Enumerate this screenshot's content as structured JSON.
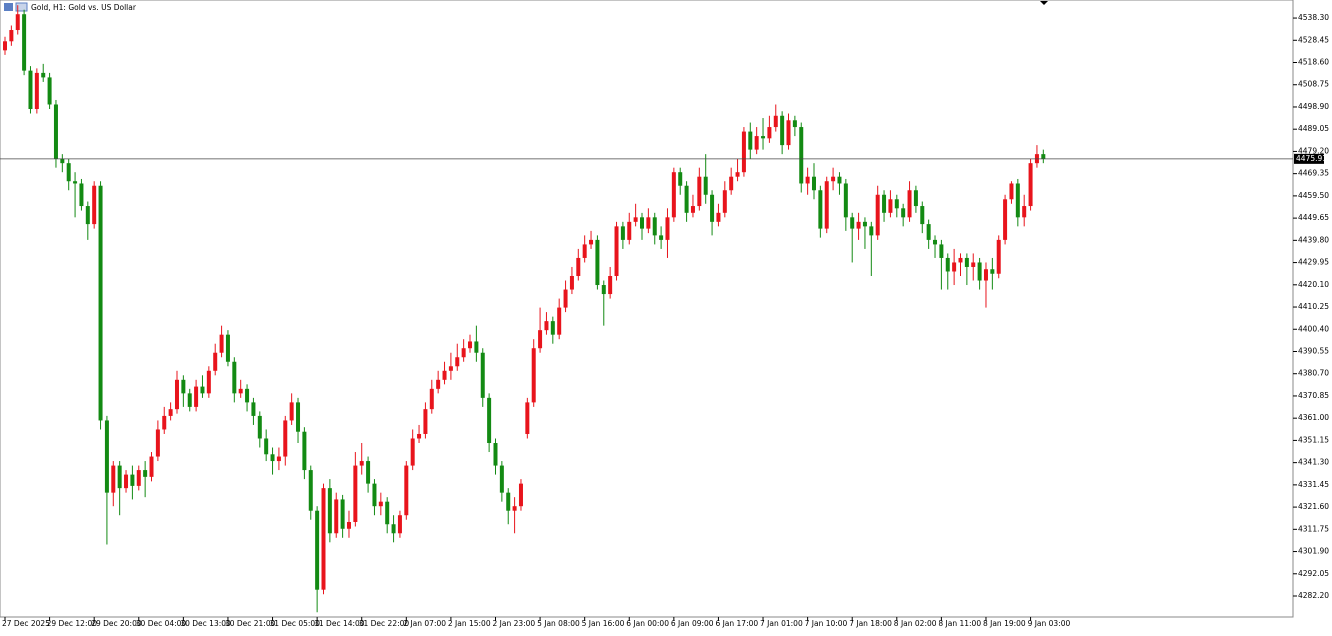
{
  "chart_data": {
    "type": "candlestick",
    "title": "Gold, H1:  Gold vs. US Dollar",
    "up_color": "#e8141c",
    "down_color": "#138a13",
    "price_line": {
      "value": 4475.91,
      "label": "4475.91"
    },
    "ylim": [
      4272.9,
      4546.3
    ],
    "yticks": [
      {
        "value": 4538.3,
        "label": "4538.30"
      },
      {
        "value": 4528.45,
        "label": "4528.45"
      },
      {
        "value": 4518.6,
        "label": "4518.60"
      },
      4508.75,
      {
        "value": 4498.9,
        "label": "4498.90"
      },
      4489.05,
      {
        "value": 4479.2,
        "label": "4479.20"
      },
      4469.35,
      {
        "value": 4459.5,
        "label": "4459.50"
      },
      4449.65,
      {
        "value": 4439.8,
        "label": "4439.80"
      },
      4429.95,
      {
        "value": 4420.1,
        "label": "4420.10"
      },
      4410.25,
      {
        "value": 4400.4,
        "label": "4400.40"
      },
      4390.55,
      {
        "value": 4380.7,
        "label": "4380.70"
      },
      4370.85,
      {
        "value": 4361,
        "label": "4361.00"
      },
      4351.15,
      {
        "value": 4341.3,
        "label": "4341.30"
      },
      4331.45,
      {
        "value": 4321.6,
        "label": "4321.60"
      },
      4311.75,
      {
        "value": 4301.9,
        "label": "4301.90"
      },
      4292.05,
      {
        "value": 4282.2,
        "label": "4282.20"
      }
    ],
    "categories": [
      "27 Dec 2025",
      null,
      null,
      null,
      null,
      null,
      null,
      "29 Dec 12:00",
      null,
      null,
      null,
      null,
      null,
      null,
      "29 Dec 20:00",
      null,
      null,
      null,
      null,
      null,
      null,
      "30 Dec 04:00",
      null,
      null,
      null,
      null,
      null,
      null,
      "30 Dec 13:00",
      null,
      null,
      null,
      null,
      null,
      null,
      "30 Dec 21:00",
      null,
      null,
      null,
      null,
      null,
      null,
      "31 Dec 05:00",
      null,
      null,
      null,
      null,
      null,
      null,
      "31 Dec 14:00",
      null,
      null,
      null,
      null,
      null,
      null,
      "31 Dec 22:00",
      null,
      null,
      null,
      null,
      null,
      null,
      "2 Jan 07:00",
      null,
      null,
      null,
      null,
      null,
      null,
      "2 Jan 15:00",
      null,
      null,
      null,
      null,
      null,
      null,
      "2 Jan 23:00",
      null,
      null,
      null,
      null,
      null,
      null,
      "5 Jan 08:00",
      null,
      null,
      null,
      null,
      null,
      null,
      "5 Jan 16:00",
      null,
      null,
      null,
      null,
      null,
      null,
      "6 Jan 00:00",
      null,
      null,
      null,
      null,
      null,
      null,
      "6 Jan 09:00",
      null,
      null,
      null,
      null,
      null,
      null,
      "6 Jan 17:00",
      null,
      null,
      null,
      null,
      null,
      null,
      "7 Jan 01:00",
      null,
      null,
      null,
      null,
      null,
      null,
      "7 Jan 10:00",
      null,
      null,
      null,
      null,
      null,
      null,
      "7 Jan 18:00",
      null,
      null,
      null,
      null,
      null,
      null,
      "8 Jan 02:00",
      null,
      null,
      null,
      null,
      null,
      null,
      "8 Jan 11:00",
      null,
      null,
      null,
      null,
      null,
      null,
      "8 Jan 19:00",
      null,
      null,
      null,
      null,
      null,
      null,
      "9 Jan 03:00",
      null,
      null
    ],
    "open": [
      4524,
      4528,
      4533,
      4540,
      4515,
      4498,
      4514,
      4512,
      4500,
      4476,
      4474,
      4466,
      4465,
      4455,
      4447,
      4464,
      4360,
      4328,
      4340,
      4330,
      4336,
      4331,
      4338,
      4335,
      4344,
      4356,
      4362,
      4365,
      4378,
      4372,
      4366,
      4375,
      4372,
      4382,
      4390,
      4398,
      4386,
      4372,
      4374,
      4368,
      4362,
      4352,
      4345,
      4342,
      4344,
      4360,
      4368,
      4355,
      4338,
      4320,
      4285,
      4330,
      4310,
      4325,
      4312,
      4315,
      4340,
      4342,
      4332,
      4322,
      4324,
      4314,
      4310,
      4318,
      4340,
      4352,
      4354,
      4365,
      4374,
      4378,
      4382,
      4384,
      4388,
      4392,
      4395,
      4390,
      4370,
      4350,
      4340,
      4328,
      4320,
      4322,
      4354,
      4368,
      4392,
      4400,
      4404,
      4398,
      4410,
      4418,
      4424,
      4432,
      4438,
      4440,
      4420,
      4416,
      4424,
      4446,
      4440,
      4448,
      4450,
      4445,
      4450,
      4442,
      4440,
      4450,
      4470,
      4464,
      4452,
      4455,
      4468,
      4460,
      4448,
      4452,
      4462,
      4468,
      4470,
      4488,
      4480,
      4486,
      4485,
      4490,
      4495,
      4482,
      4493,
      4490,
      4465,
      4468,
      4462,
      4445,
      4466,
      4468,
      4465,
      4450,
      4445,
      4448,
      4446,
      4442,
      4460,
      4452,
      4458,
      4454,
      4450,
      4462,
      4455,
      4447,
      4440,
      4438,
      4432,
      4426,
      4430,
      4432,
      4428,
      4430,
      4422,
      4427,
      4425,
      4440,
      4458,
      4465,
      4450,
      4455,
      4474,
      4478
    ],
    "high": [
      4530,
      4535,
      4544,
      4542,
      4517,
      4516,
      4518,
      4514,
      4502,
      4478,
      4476,
      4470,
      4467,
      4457,
      4466,
      4466,
      4362,
      4342,
      4342,
      4338,
      4340,
      4340,
      4342,
      4346,
      4360,
      4366,
      4368,
      4382,
      4380,
      4374,
      4378,
      4380,
      4384,
      4394,
      4402,
      4400,
      4388,
      4378,
      4376,
      4370,
      4364,
      4356,
      4348,
      4348,
      4362,
      4372,
      4370,
      4357,
      4340,
      4322,
      4332,
      4334,
      4328,
      4327,
      4320,
      4346,
      4350,
      4344,
      4334,
      4328,
      4326,
      4318,
      4320,
      4342,
      4356,
      4358,
      4368,
      4378,
      4382,
      4386,
      4390,
      4394,
      4396,
      4398,
      4402,
      4392,
      4372,
      4352,
      4342,
      4330,
      4326,
      4334,
      4370,
      4396,
      4410,
      4408,
      4406,
      4414,
      4422,
      4428,
      4436,
      4442,
      4444,
      4442,
      4422,
      4428,
      4448,
      4448,
      4452,
      4456,
      4452,
      4454,
      4452,
      4446,
      4454,
      4472,
      4472,
      4466,
      4460,
      4472,
      4478,
      4462,
      4456,
      4466,
      4472,
      4476,
      4490,
      4492,
      4490,
      4494,
      4495,
      4500,
      4497,
      4496,
      4495,
      4492,
      4472,
      4474,
      4464,
      4468,
      4472,
      4470,
      4467,
      4452,
      4452,
      4450,
      4448,
      4464,
      4462,
      4462,
      4460,
      4456,
      4466,
      4464,
      4457,
      4449,
      4442,
      4440,
      4434,
      4436,
      4434,
      4434,
      4434,
      4432,
      4430,
      4432,
      4442,
      4460,
      4466,
      4467,
      4460,
      4476,
      4482,
      4480
    ],
    "low": [
      4522,
      4526,
      4531,
      4513,
      4496,
      4496,
      4510,
      4498,
      4472,
      4470,
      4462,
      4450,
      4453,
      4440,
      4445,
      4356,
      4305,
      4322,
      4318,
      4328,
      4325,
      4329,
      4326,
      4333,
      4342,
      4354,
      4360,
      4363,
      4366,
      4364,
      4364,
      4370,
      4370,
      4380,
      4388,
      4384,
      4368,
      4370,
      4364,
      4358,
      4348,
      4342,
      4336,
      4338,
      4340,
      4358,
      4350,
      4334,
      4316,
      4275,
      4283,
      4306,
      4308,
      4308,
      4308,
      4313,
      4336,
      4328,
      4318,
      4318,
      4310,
      4306,
      4308,
      4316,
      4338,
      4350,
      4352,
      4363,
      4372,
      4376,
      4378,
      4382,
      4386,
      4390,
      4386,
      4366,
      4346,
      4336,
      4324,
      4314,
      4310,
      4320,
      4352,
      4366,
      4390,
      4398,
      4394,
      4396,
      4408,
      4416,
      4422,
      4430,
      4436,
      4418,
      4402,
      4414,
      4422,
      4436,
      4438,
      4446,
      4440,
      4443,
      4438,
      4436,
      4432,
      4448,
      4460,
      4448,
      4450,
      4453,
      4456,
      4442,
      4446,
      4450,
      4460,
      4466,
      4468,
      4476,
      4478,
      4480,
      4483,
      4488,
      4478,
      4480,
      4486,
      4461,
      4460,
      4458,
      4441,
      4443,
      4462,
      4460,
      4444,
      4430,
      4440,
      4436,
      4424,
      4440,
      4448,
      4450,
      4450,
      4446,
      4448,
      4452,
      4443,
      4436,
      4432,
      4418,
      4418,
      4420,
      4424,
      4420,
      4422,
      4418,
      4410,
      4418,
      4423,
      4438,
      4456,
      4446,
      4446,
      4453,
      4472,
      4474
    ],
    "close": [
      4528,
      4533,
      4540,
      4515,
      4498,
      4514,
      4512,
      4500,
      4476,
      4474,
      4466,
      4465,
      4455,
      4447,
      4464,
      4360,
      4328,
      4340,
      4330,
      4336,
      4331,
      4338,
      4335,
      4344,
      4356,
      4362,
      4365,
      4378,
      4372,
      4366,
      4375,
      4372,
      4382,
      4390,
      4398,
      4386,
      4372,
      4374,
      4368,
      4362,
      4352,
      4345,
      4342,
      4344,
      4360,
      4368,
      4355,
      4338,
      4320,
      4285,
      4330,
      4310,
      4325,
      4312,
      4315,
      4340,
      4342,
      4332,
      4322,
      4324,
      4314,
      4310,
      4318,
      4340,
      4352,
      4354,
      4365,
      4374,
      4378,
      4382,
      4384,
      4388,
      4392,
      4395,
      4390,
      4370,
      4350,
      4340,
      4328,
      4320,
      4322,
      4332,
      4368,
      4392,
      4400,
      4404,
      4398,
      4410,
      4418,
      4424,
      4432,
      4438,
      4440,
      4420,
      4416,
      4424,
      4446,
      4440,
      4448,
      4450,
      4445,
      4450,
      4442,
      4440,
      4450,
      4470,
      4464,
      4452,
      4455,
      4468,
      4460,
      4448,
      4452,
      4462,
      4468,
      4470,
      4488,
      4480,
      4486,
      4485,
      4490,
      4495,
      4482,
      4493,
      4490,
      4465,
      4468,
      4462,
      4445,
      4466,
      4468,
      4465,
      4450,
      4445,
      4448,
      4446,
      4442,
      4460,
      4452,
      4458,
      4454,
      4450,
      4462,
      4455,
      4447,
      4440,
      4438,
      4432,
      4426,
      4430,
      4432,
      4428,
      4430,
      4422,
      4427,
      4425,
      4440,
      4458,
      4465,
      4450,
      4455,
      4474,
      4478,
      4476
    ]
  }
}
